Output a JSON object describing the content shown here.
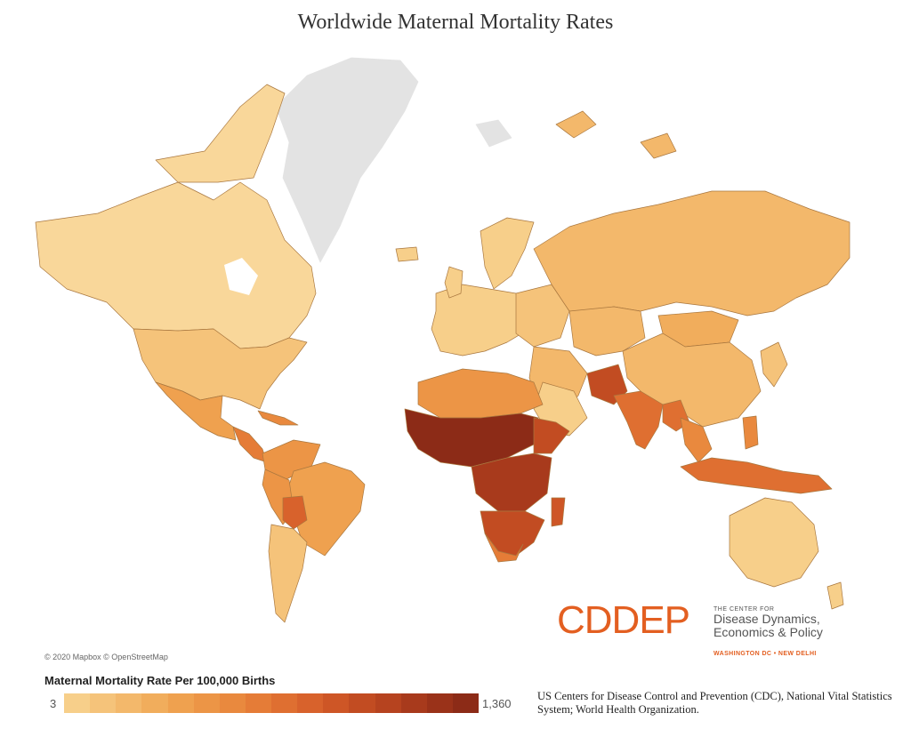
{
  "title": "Worldwide Maternal Mortality Rates",
  "map_attribution": "© 2020 Mapbox © OpenStreetMap",
  "legend": {
    "title": "Maternal Mortality Rate Per 100,000 Births",
    "min_label": "3",
    "max_label": "1,360",
    "colors": [
      "#f7cf8a",
      "#f5c37a",
      "#f3b86b",
      "#f1ad5c",
      "#efa14f",
      "#ec9546",
      "#e9893e",
      "#e57c37",
      "#df6f31",
      "#d8622c",
      "#ce5626",
      "#c24c22",
      "#b6431f",
      "#a83a1c",
      "#9a3219",
      "#8c2b17"
    ]
  },
  "source": "US Centers for Disease Control and Prevention (CDC), National Vital Statistics System; World Health Organization.",
  "logo": {
    "wordmark": "CDDEP",
    "tag_small": "THE CENTER FOR",
    "tag_line1": "Disease Dynamics,",
    "tag_line2": "Economics & Policy",
    "locations": "WASHINGTON DC • NEW DELHI"
  },
  "colors": {
    "no_data": "#e3e3e3",
    "very_low": "#f7cf8a",
    "low": "#f1ad5c",
    "medium": "#e9893e",
    "high": "#df6f31",
    "very_high": "#b6431f",
    "highest": "#8c2b17",
    "border": "#b07a3e"
  }
}
